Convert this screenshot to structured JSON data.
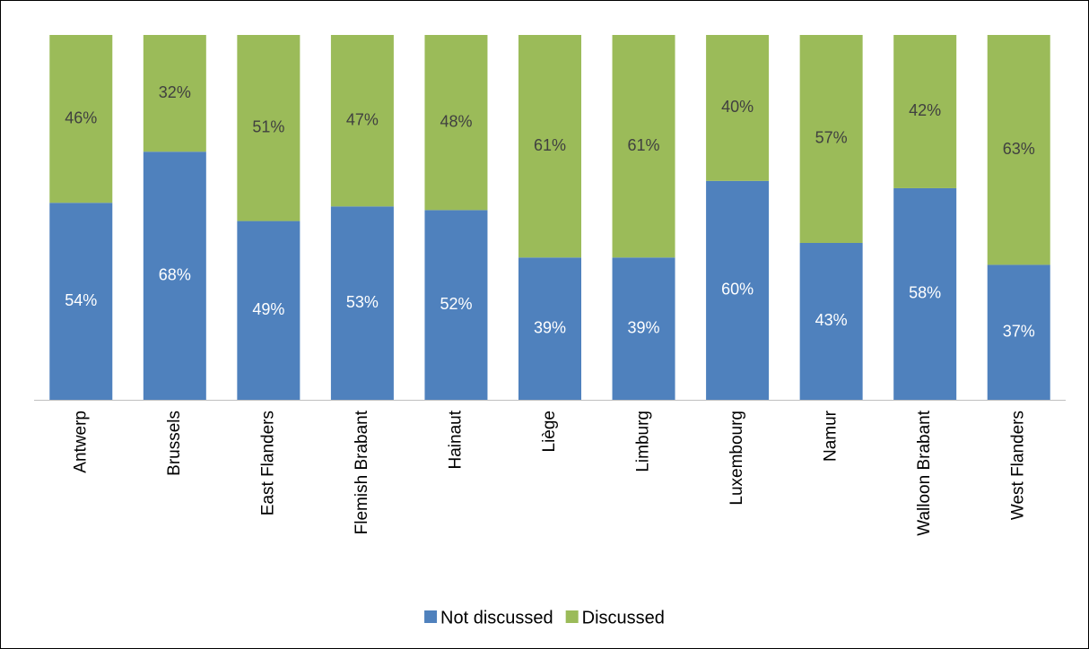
{
  "chart_data": {
    "type": "stacked_bar",
    "categories": [
      "Antwerp",
      "Brussels",
      "East Flanders",
      "Flemish Brabant",
      "Hainaut",
      "Liège",
      "Limburg",
      "Luxembourg",
      "Namur",
      "Walloon Brabant",
      "West Flanders"
    ],
    "series": [
      {
        "name": "Not discussed",
        "color": "#4f81bd",
        "values": [
          54,
          68,
          49,
          53,
          52,
          39,
          39,
          60,
          43,
          58,
          37
        ],
        "value_labels": [
          "54%",
          "68%",
          "49%",
          "53%",
          "52%",
          "39%",
          "39%",
          "60%",
          "43%",
          "58%",
          "37%"
        ]
      },
      {
        "name": "Discussed",
        "color": "#9bbb59",
        "values": [
          46,
          32,
          51,
          47,
          48,
          61,
          61,
          40,
          57,
          42,
          63
        ],
        "value_labels": [
          "46%",
          "32%",
          "51%",
          "47%",
          "48%",
          "61%",
          "61%",
          "40%",
          "57%",
          "42%",
          "63%"
        ]
      }
    ],
    "legend": "bottom"
  }
}
